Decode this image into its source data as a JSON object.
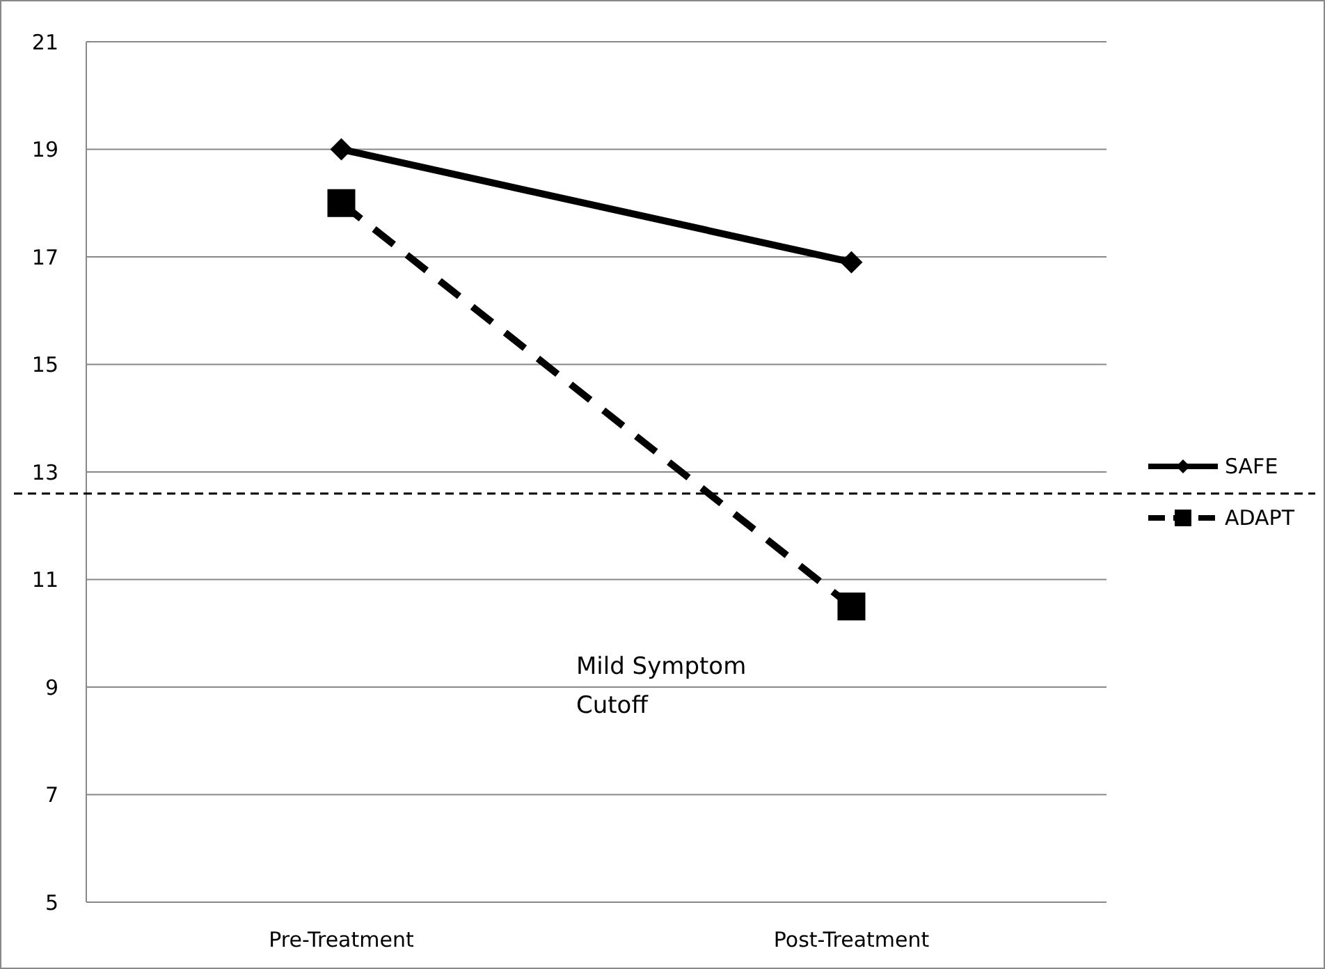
{
  "chart_data": {
    "type": "line",
    "categories": [
      "Pre-Treatment",
      "Post-Treatment"
    ],
    "series": [
      {
        "name": "SAFE",
        "color": "#000000",
        "values": [
          19,
          16.9
        ],
        "marker": "diamond",
        "line_style": "solid"
      },
      {
        "name": "ADAPT",
        "color": "#000000",
        "values": [
          18,
          10.5
        ],
        "marker": "square",
        "line_style": "dashed"
      }
    ],
    "ylim": [
      5,
      21
    ],
    "yticks": [
      5,
      7,
      9,
      11,
      13,
      15,
      17,
      19,
      21
    ],
    "grid": "y",
    "legend": "right",
    "ref_lines": [
      {
        "axis": "y",
        "value": 12.6,
        "line_style": "dashed",
        "color": "#000000"
      }
    ],
    "annotations": [
      "Mild Symptom Cutoff"
    ]
  }
}
